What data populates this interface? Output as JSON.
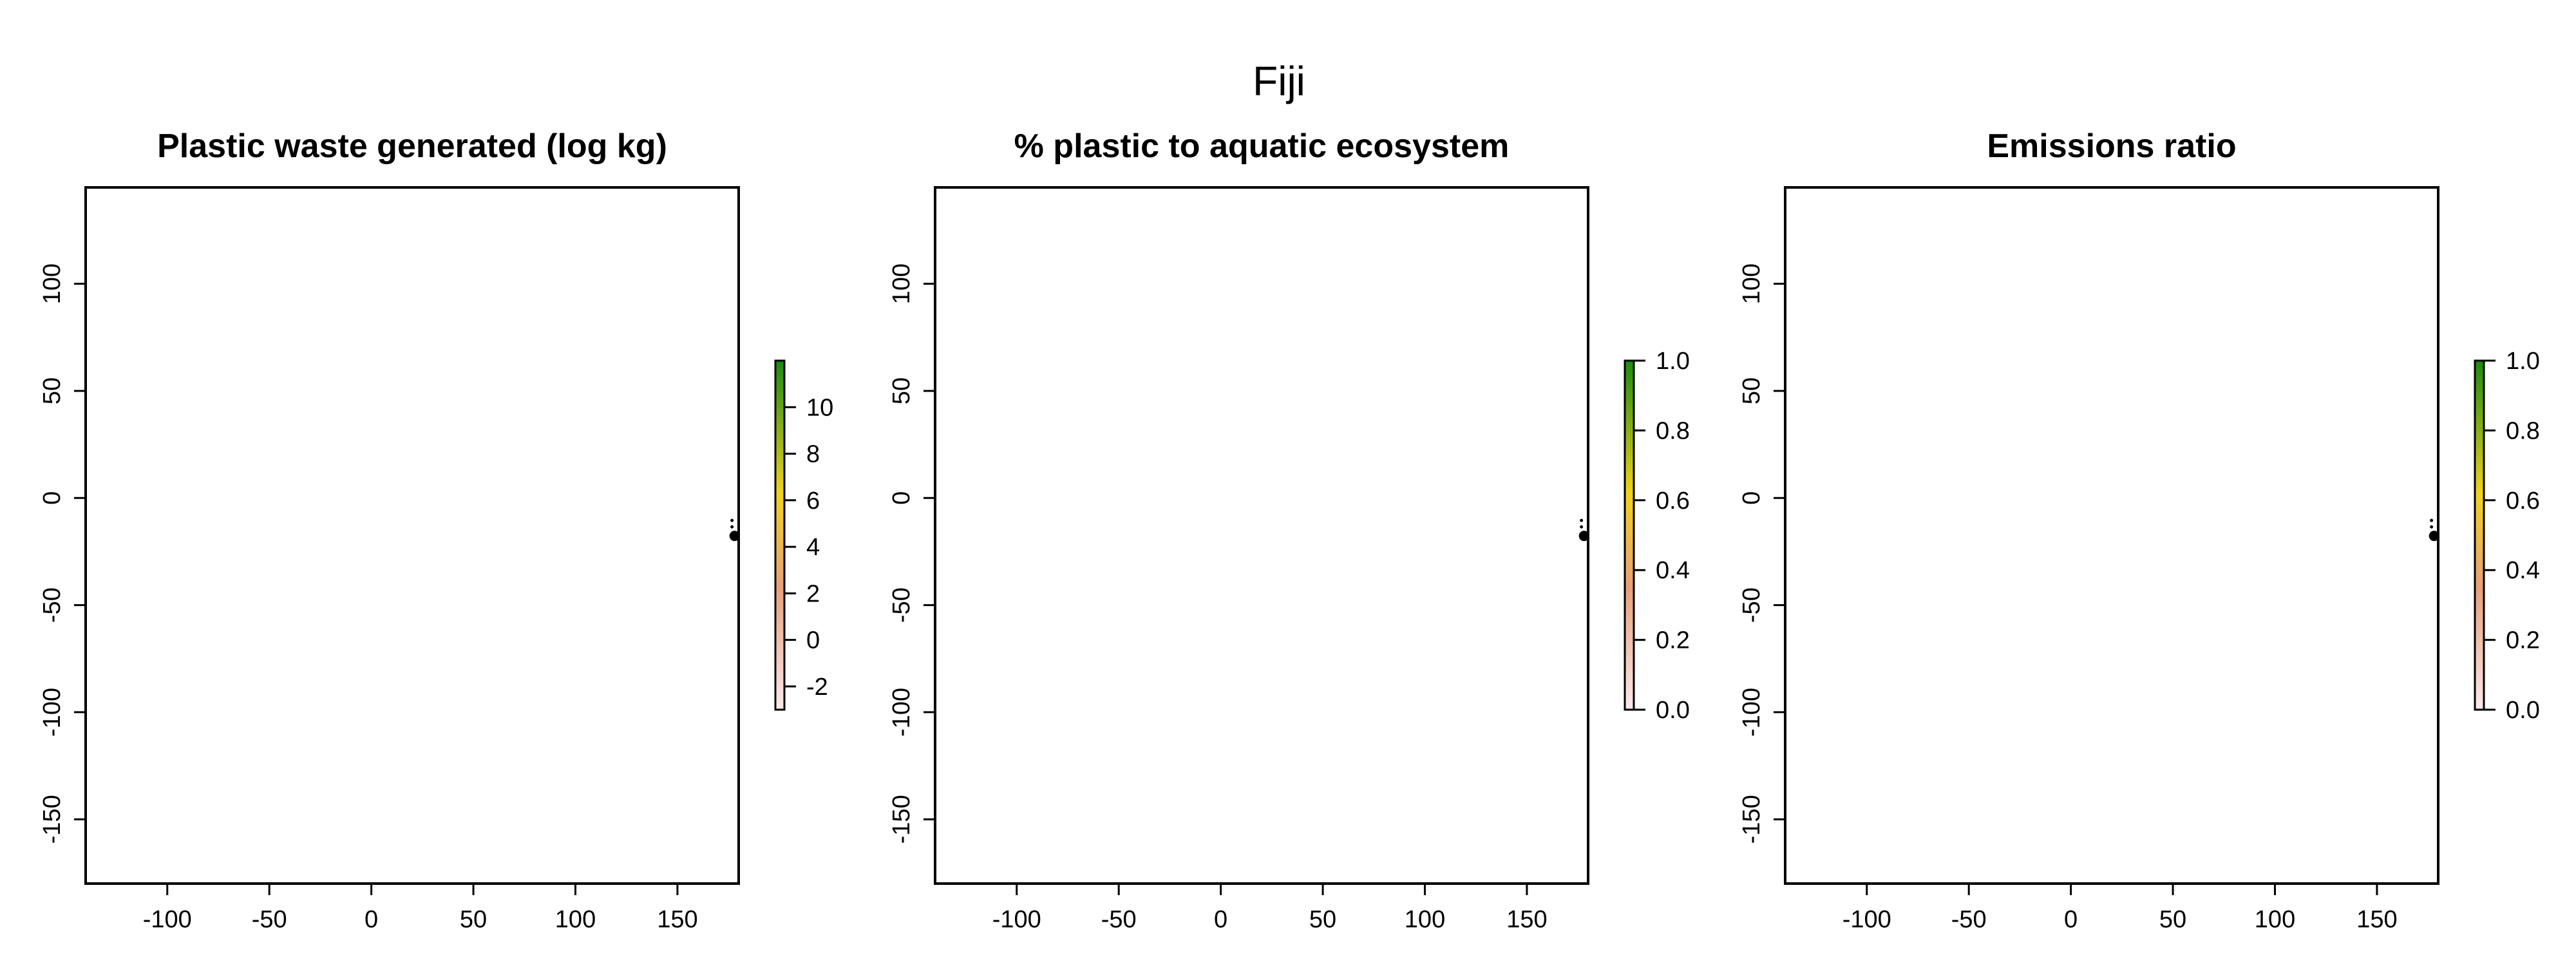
{
  "title": "Fiji",
  "colors": {
    "scale_low": "#fbe9ec",
    "scale_mid_low": "#e8a07a",
    "scale_mid": "#f0d21e",
    "scale_high": "#1a8a12",
    "point": "#000000"
  },
  "chart_data": [
    {
      "type": "map",
      "title": "Plastic waste generated (log kg)",
      "xlim": [
        -140,
        180
      ],
      "ylim": [
        -180,
        145
      ],
      "x_ticks": [
        -100,
        -50,
        0,
        50,
        100,
        150
      ],
      "y_ticks": [
        100,
        50,
        0,
        -50,
        -100,
        -150
      ],
      "legend": {
        "placement": "right",
        "range": [
          -3,
          12
        ],
        "ticks": [
          -2,
          0,
          2,
          4,
          6,
          8,
          10
        ]
      },
      "points": [
        {
          "lon": 178.0,
          "lat": -17.7
        }
      ]
    },
    {
      "type": "map",
      "title": "% plastic to aquatic ecosystem",
      "xlim": [
        -140,
        180
      ],
      "ylim": [
        -180,
        145
      ],
      "x_ticks": [
        -100,
        -50,
        0,
        50,
        100,
        150
      ],
      "y_ticks": [
        100,
        50,
        0,
        -50,
        -100,
        -150
      ],
      "legend": {
        "placement": "right",
        "range": [
          0,
          1
        ],
        "ticks": [
          "0.0",
          "0.2",
          "0.4",
          "0.6",
          "0.8",
          "1.0"
        ]
      },
      "points": [
        {
          "lon": 178.0,
          "lat": -17.7
        }
      ]
    },
    {
      "type": "map",
      "title": "Emissions ratio",
      "xlim": [
        -140,
        180
      ],
      "ylim": [
        -180,
        145
      ],
      "x_ticks": [
        -100,
        -50,
        0,
        50,
        100,
        150
      ],
      "y_ticks": [
        100,
        50,
        0,
        -50,
        -100,
        -150
      ],
      "legend": {
        "placement": "right",
        "range": [
          0,
          1
        ],
        "ticks": [
          "0.0",
          "0.2",
          "0.4",
          "0.6",
          "0.8",
          "1.0"
        ]
      },
      "points": [
        {
          "lon": 178.0,
          "lat": -17.7
        }
      ]
    }
  ]
}
